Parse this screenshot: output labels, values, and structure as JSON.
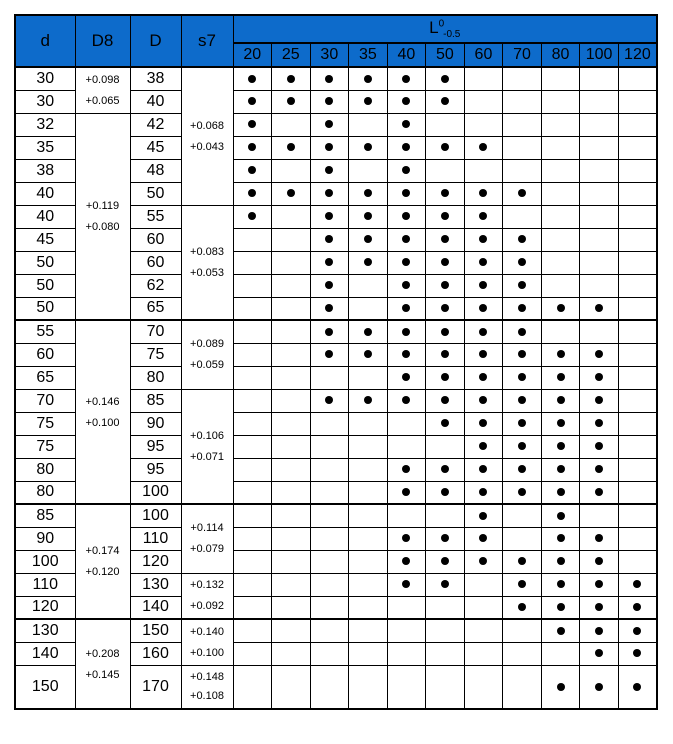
{
  "table": {
    "header": {
      "d": "d",
      "d8": "D8",
      "D": "D",
      "s7": "s7",
      "l_base": "L",
      "l_sup": "0",
      "l_sub": "-0.5",
      "lengths": [
        "20",
        "25",
        "30",
        "35",
        "40",
        "50",
        "60",
        "70",
        "80",
        "100",
        "120"
      ]
    },
    "length_values": [
      20,
      25,
      30,
      35,
      40,
      50,
      60,
      70,
      80,
      100,
      120
    ],
    "rows": [
      {
        "d": "30",
        "D": "38",
        "dots": [
          20,
          25,
          30,
          35,
          40,
          50
        ]
      },
      {
        "d": "30",
        "D": "40",
        "dots": [
          20,
          25,
          30,
          35,
          40,
          50
        ]
      },
      {
        "d": "32",
        "D": "42",
        "dots": [
          20,
          30,
          40
        ]
      },
      {
        "d": "35",
        "D": "45",
        "dots": [
          20,
          25,
          30,
          35,
          40,
          50,
          60
        ]
      },
      {
        "d": "38",
        "D": "48",
        "dots": [
          20,
          30,
          40
        ]
      },
      {
        "d": "40",
        "D": "50",
        "dots": [
          20,
          25,
          30,
          35,
          40,
          50,
          60,
          70
        ]
      },
      {
        "d": "40",
        "D": "55",
        "dots": [
          20,
          30,
          35,
          40,
          50,
          60
        ]
      },
      {
        "d": "45",
        "D": "60",
        "dots": [
          30,
          35,
          40,
          50,
          60,
          70
        ]
      },
      {
        "d": "50",
        "D": "60",
        "dots": [
          30,
          35,
          40,
          50,
          60,
          70
        ]
      },
      {
        "d": "50",
        "D": "62",
        "dots": [
          30,
          40,
          50,
          60,
          70
        ]
      },
      {
        "d": "50",
        "D": "65",
        "dots": [
          30,
          40,
          50,
          60,
          70,
          80,
          100
        ]
      },
      {
        "d": "55",
        "D": "70",
        "dots": [
          30,
          35,
          40,
          50,
          60,
          70
        ]
      },
      {
        "d": "60",
        "D": "75",
        "dots": [
          30,
          35,
          40,
          50,
          60,
          70,
          80,
          100
        ]
      },
      {
        "d": "65",
        "D": "80",
        "dots": [
          40,
          50,
          60,
          70,
          80,
          100
        ]
      },
      {
        "d": "70",
        "D": "85",
        "dots": [
          30,
          35,
          40,
          50,
          60,
          70,
          80,
          100
        ]
      },
      {
        "d": "75",
        "D": "90",
        "dots": [
          50,
          60,
          70,
          80,
          100
        ]
      },
      {
        "d": "75",
        "D": "95",
        "dots": [
          60,
          70,
          80,
          100
        ]
      },
      {
        "d": "80",
        "D": "95",
        "dots": [
          40,
          50,
          60,
          70,
          80,
          100
        ]
      },
      {
        "d": "80",
        "D": "100",
        "dots": [
          40,
          50,
          60,
          70,
          80,
          100
        ]
      },
      {
        "d": "85",
        "D": "100",
        "dots": [
          60,
          80
        ]
      },
      {
        "d": "90",
        "D": "110",
        "dots": [
          40,
          50,
          60,
          80,
          100
        ]
      },
      {
        "d": "100",
        "D": "120",
        "dots": [
          40,
          50,
          60,
          70,
          80,
          100
        ]
      },
      {
        "d": "110",
        "D": "130",
        "dots": [
          40,
          50,
          70,
          80,
          100,
          120
        ]
      },
      {
        "d": "120",
        "D": "140",
        "dots": [
          70,
          80,
          100,
          120
        ]
      },
      {
        "d": "130",
        "D": "150",
        "dots": [
          80,
          100,
          120
        ]
      },
      {
        "d": "140",
        "D": "160",
        "dots": [
          100,
          120
        ]
      },
      {
        "d": "150",
        "D": "170",
        "dots": [
          80,
          100,
          120
        ]
      }
    ],
    "d8_groups": [
      {
        "start": 1,
        "end": 2,
        "top": "+0.098",
        "bottom": "+0.065"
      },
      {
        "start": 3,
        "end": 11,
        "top": "+0.119",
        "bottom": "+0.080"
      },
      {
        "start": 12,
        "end": 19,
        "top": "+0.146",
        "bottom": "+0.100"
      },
      {
        "start": 20,
        "end": 24,
        "top": "+0.174",
        "bottom": "+0.120"
      },
      {
        "start": 25,
        "end": 27,
        "top": "+0.208",
        "bottom": "+0.145"
      }
    ],
    "s7_groups": [
      {
        "start": 1,
        "end": 6,
        "top": "+0.068",
        "bottom": "+0.043"
      },
      {
        "start": 7,
        "end": 11,
        "top": "+0.083",
        "bottom": "+0.053"
      },
      {
        "start": 12,
        "end": 14,
        "top": "+0.089",
        "bottom": "+0.059"
      },
      {
        "start": 15,
        "end": 19,
        "top": "+0.106",
        "bottom": "+0.071"
      },
      {
        "start": 20,
        "end": 22,
        "top": "+0.114",
        "bottom": "+0.079"
      },
      {
        "start": 23,
        "end": 24,
        "top": "+0.132",
        "bottom": "+0.092"
      },
      {
        "start": 25,
        "end": 26,
        "top": "+0.140",
        "bottom": "+0.100"
      },
      {
        "start": 27,
        "end": 27,
        "top": "+0.148",
        "bottom": "+0.108"
      }
    ],
    "thick_after_rows": [
      11,
      19,
      24
    ],
    "colors": {
      "header_bg": "#0D6BCB",
      "border": "#000000",
      "dot": "#000000",
      "text": "#000000"
    }
  }
}
